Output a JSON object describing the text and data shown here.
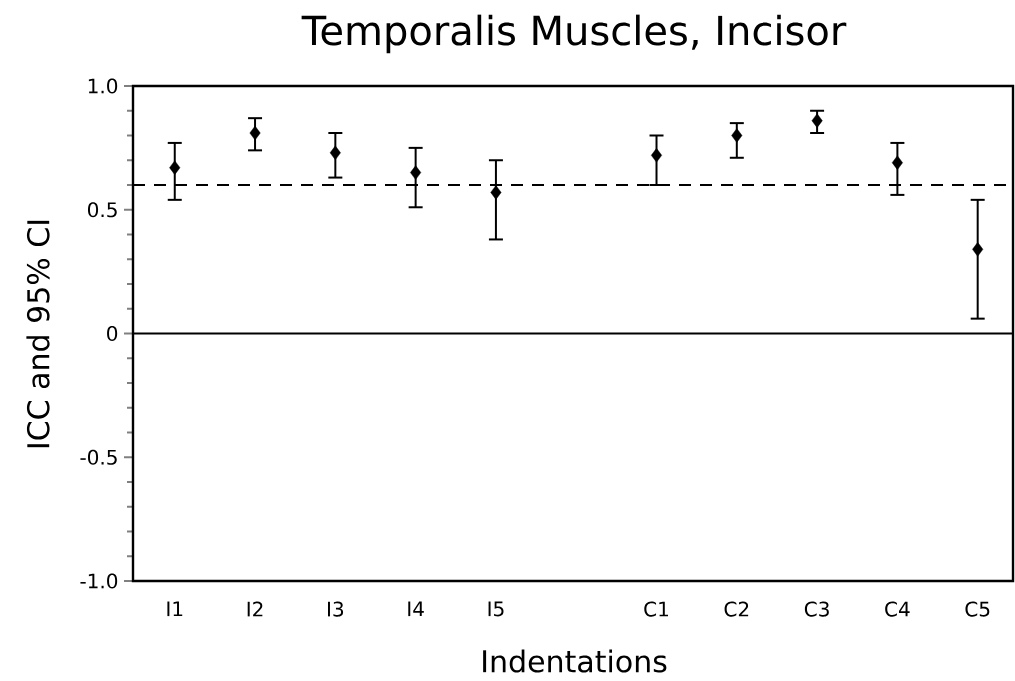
{
  "chart_data": {
    "type": "scatter",
    "title": "Temporalis Muscles, Incisor",
    "xlabel": "Indentations",
    "ylabel": "ICC and 95% CI",
    "categories": [
      "I1",
      "I2",
      "I3",
      "I4",
      "I5",
      null,
      "C1",
      "C2",
      "C3",
      "C4",
      "C5"
    ],
    "values": [
      0.67,
      0.81,
      0.73,
      0.65,
      0.57,
      null,
      0.72,
      0.8,
      0.86,
      0.69,
      0.34
    ],
    "errors": [
      [
        0.54,
        0.77
      ],
      [
        0.74,
        0.87
      ],
      [
        0.63,
        0.81
      ],
      [
        0.51,
        0.75
      ],
      [
        0.38,
        0.7
      ],
      null,
      [
        0.6,
        0.8
      ],
      [
        0.71,
        0.85
      ],
      [
        0.81,
        0.9
      ],
      [
        0.56,
        0.77
      ],
      [
        0.06,
        0.54
      ]
    ],
    "color": "#000000",
    "marker": "diamond",
    "ylim": [
      -1,
      1
    ],
    "yticks": [
      {
        "value": -1,
        "label": "-1.0"
      },
      -0.5,
      0,
      0.5,
      {
        "value": 1,
        "label": "1.0"
      }
    ],
    "ref_lines": [
      {
        "axis": "y",
        "value": 0.6,
        "line_style": "dashed"
      },
      {
        "axis": "y",
        "value": 0,
        "line_style": "solid"
      }
    ]
  }
}
